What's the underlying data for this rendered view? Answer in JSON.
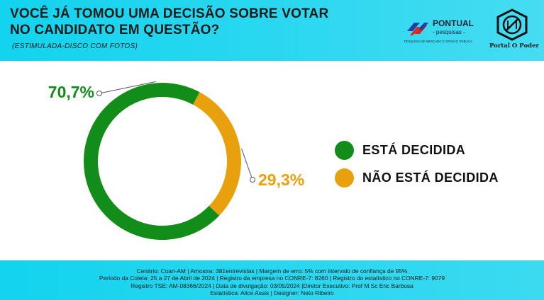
{
  "header": {
    "title": "VOCÊ JÁ TOMOU UMA DECISÃO SOBRE VOTAR\nNO CANDIDATO EM QUESTÃO?",
    "subtitle": "(ESTIMULADA-DISCO COM FOTOS)",
    "pontual_logo": {
      "name": "PONTUAL",
      "sub": "- pesquisas -",
      "tagline": "PESQUISA DE MERCADO E OPINIÃO PÚBLICA"
    },
    "portal_logo": {
      "name": "Portal O Poder"
    }
  },
  "chart_data": {
    "type": "pie",
    "style": "donut",
    "slices": [
      {
        "label": "ESTÁ DECIDIDA",
        "value": 70.7,
        "display": "70,7%",
        "color": "#138d19"
      },
      {
        "label": "NÃO ESTÁ DECIDIDA",
        "value": 29.3,
        "display": "29,3%",
        "color": "#e8a00c"
      }
    ],
    "legend_position": "right"
  },
  "footer": {
    "lines": [
      "Cenário: Coari-AM | Amostra: 381entrevistas | Margem de erro: 5% com intervalo de confiança de 95%",
      "Período da Coleta: 25 a 27 de Abril de 2024 | Registro da empresa no CONRE-7: 8260 | Registro do estatístico no CONRE-7: 9079",
      "Registro TSE: AM-08366/2024 | Data de divulgação: 03/05/2024 |Diretor Executivo: Prof M.Sc Eric Barbosa",
      "Estatística: Alice Assis | Designer: Neto Ribeiro"
    ]
  },
  "colors": {
    "header_bg": "#13d3ee",
    "green": "#138d19",
    "orange": "#e8a00c"
  },
  "icons": [
    "pontual-logo-icon",
    "portal-o-poder-logo-icon"
  ]
}
